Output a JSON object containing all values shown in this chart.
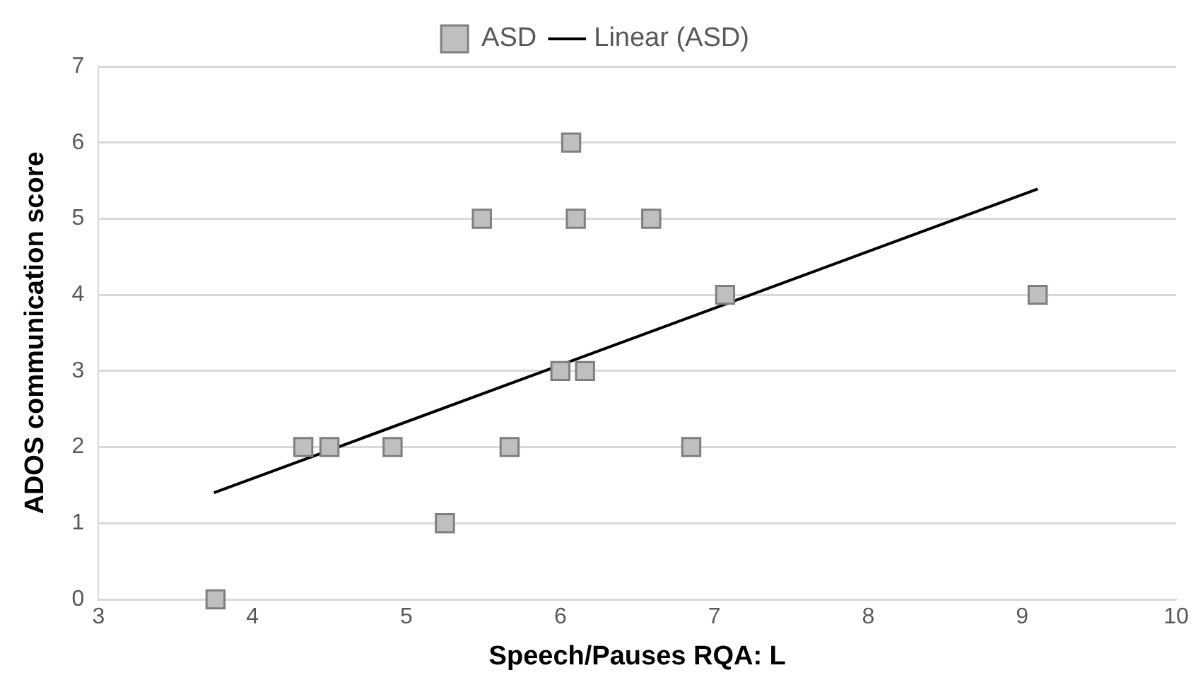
{
  "chart_data": {
    "type": "scatter",
    "xlabel": "Speech/Pauses RQA: L",
    "ylabel": "ADOS communication score",
    "series": [
      {
        "name": "ASD",
        "color": "#bfbfbf",
        "marker": "square",
        "x": [
          3.76,
          4.33,
          4.5,
          4.91,
          5.25,
          5.49,
          5.67,
          6.0,
          6.07,
          6.1,
          6.16,
          6.59,
          6.85,
          7.07,
          9.1
        ],
        "values": [
          0,
          2,
          2,
          2,
          1,
          5,
          2,
          3,
          6,
          5,
          3,
          5,
          2,
          4,
          4
        ]
      },
      {
        "name": "Linear (ASD)",
        "type": "line",
        "color": "#000000",
        "marker": "none",
        "line_style": "solid",
        "x": [
          3.75,
          9.1
        ],
        "values": [
          1.4,
          5.39
        ]
      }
    ],
    "xlim": [
      3,
      10
    ],
    "xticks": [
      3,
      4,
      5,
      6,
      7,
      8,
      9,
      10
    ],
    "ylim": [
      0,
      7
    ],
    "yticks": [
      0,
      1,
      2,
      3,
      4,
      5,
      6,
      7
    ],
    "grid": "y",
    "legend": "top"
  }
}
